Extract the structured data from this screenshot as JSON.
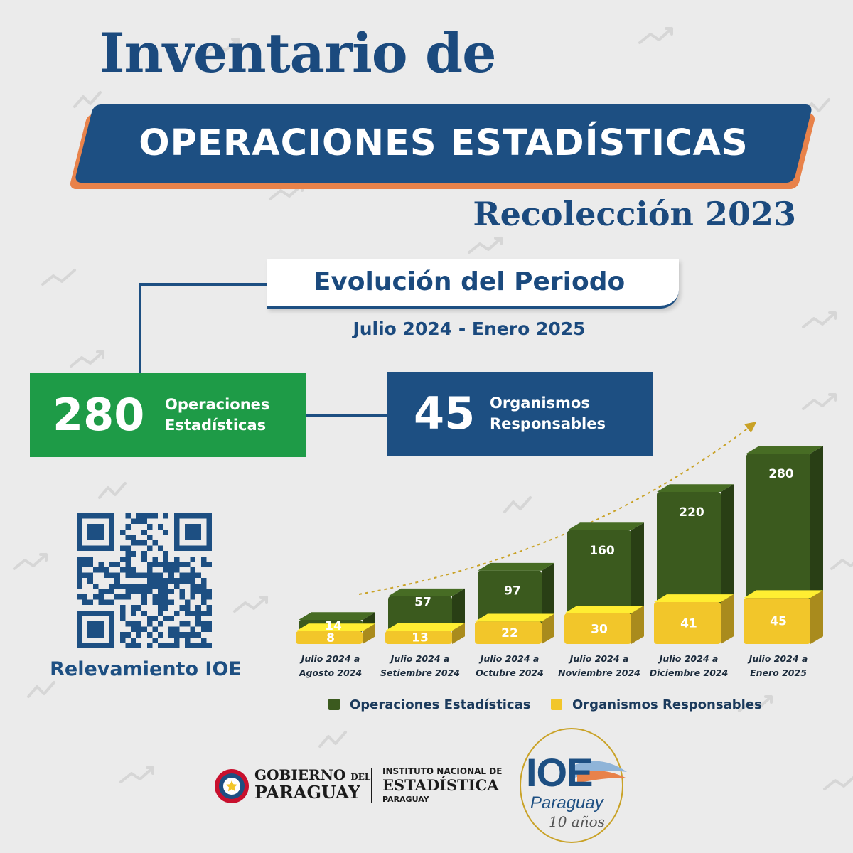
{
  "header": {
    "title": "Inventario de",
    "banner": "OPERACIONES ESTADÍSTICAS",
    "subtitle": "Recolección 2023"
  },
  "period": {
    "title": "Evolución del Periodo",
    "range": "Julio 2024 - Enero 2025"
  },
  "stats": {
    "operations": {
      "value": "280",
      "label_line1": "Operaciones",
      "label_line2": "Estadísticas"
    },
    "organisms": {
      "value": "45",
      "label_line1": "Organismos",
      "label_line2": "Responsables"
    }
  },
  "qr": {
    "caption": "Relevamiento IOE"
  },
  "colors": {
    "green_bar": "#3b5a1e",
    "yellow_bar": "#f2c62a",
    "green_box": "#1e9b47",
    "navy": "#1d4f82",
    "orange": "#e8824a"
  },
  "chart_data": {
    "type": "bar",
    "categories": [
      [
        "Julio 2024 a",
        "Agosto 2024"
      ],
      [
        "Julio 2024 a",
        "Setiembre 2024"
      ],
      [
        "Julio 2024 a",
        "Octubre 2024"
      ],
      [
        "Julio 2024 a",
        "Noviembre   2024"
      ],
      [
        "Julio 2024 a",
        "Diciembre 2024"
      ],
      [
        "Julio 2024 a",
        "Enero 2025"
      ]
    ],
    "series": [
      {
        "name": "Operaciones Estadísticas",
        "values": [
          14,
          57,
          97,
          160,
          220,
          280
        ]
      },
      {
        "name": "Organismos Responsables",
        "values": [
          8,
          13,
          22,
          30,
          41,
          45
        ]
      }
    ],
    "legend_position": "bottom",
    "grid": false
  },
  "footer": {
    "gov_line1_a": "GOBIERNO",
    "gov_line1_b": "DEL",
    "gov_line2": "PARAGUAY",
    "ine_line1": "INSTITUTO NACIONAL DE",
    "ine_line2": "ESTADÍSTICA",
    "ine_line3": "PARAGUAY",
    "ioe_logo": "IOE",
    "ioe_sub": "Paraguay",
    "ioe_years": "10 años"
  }
}
